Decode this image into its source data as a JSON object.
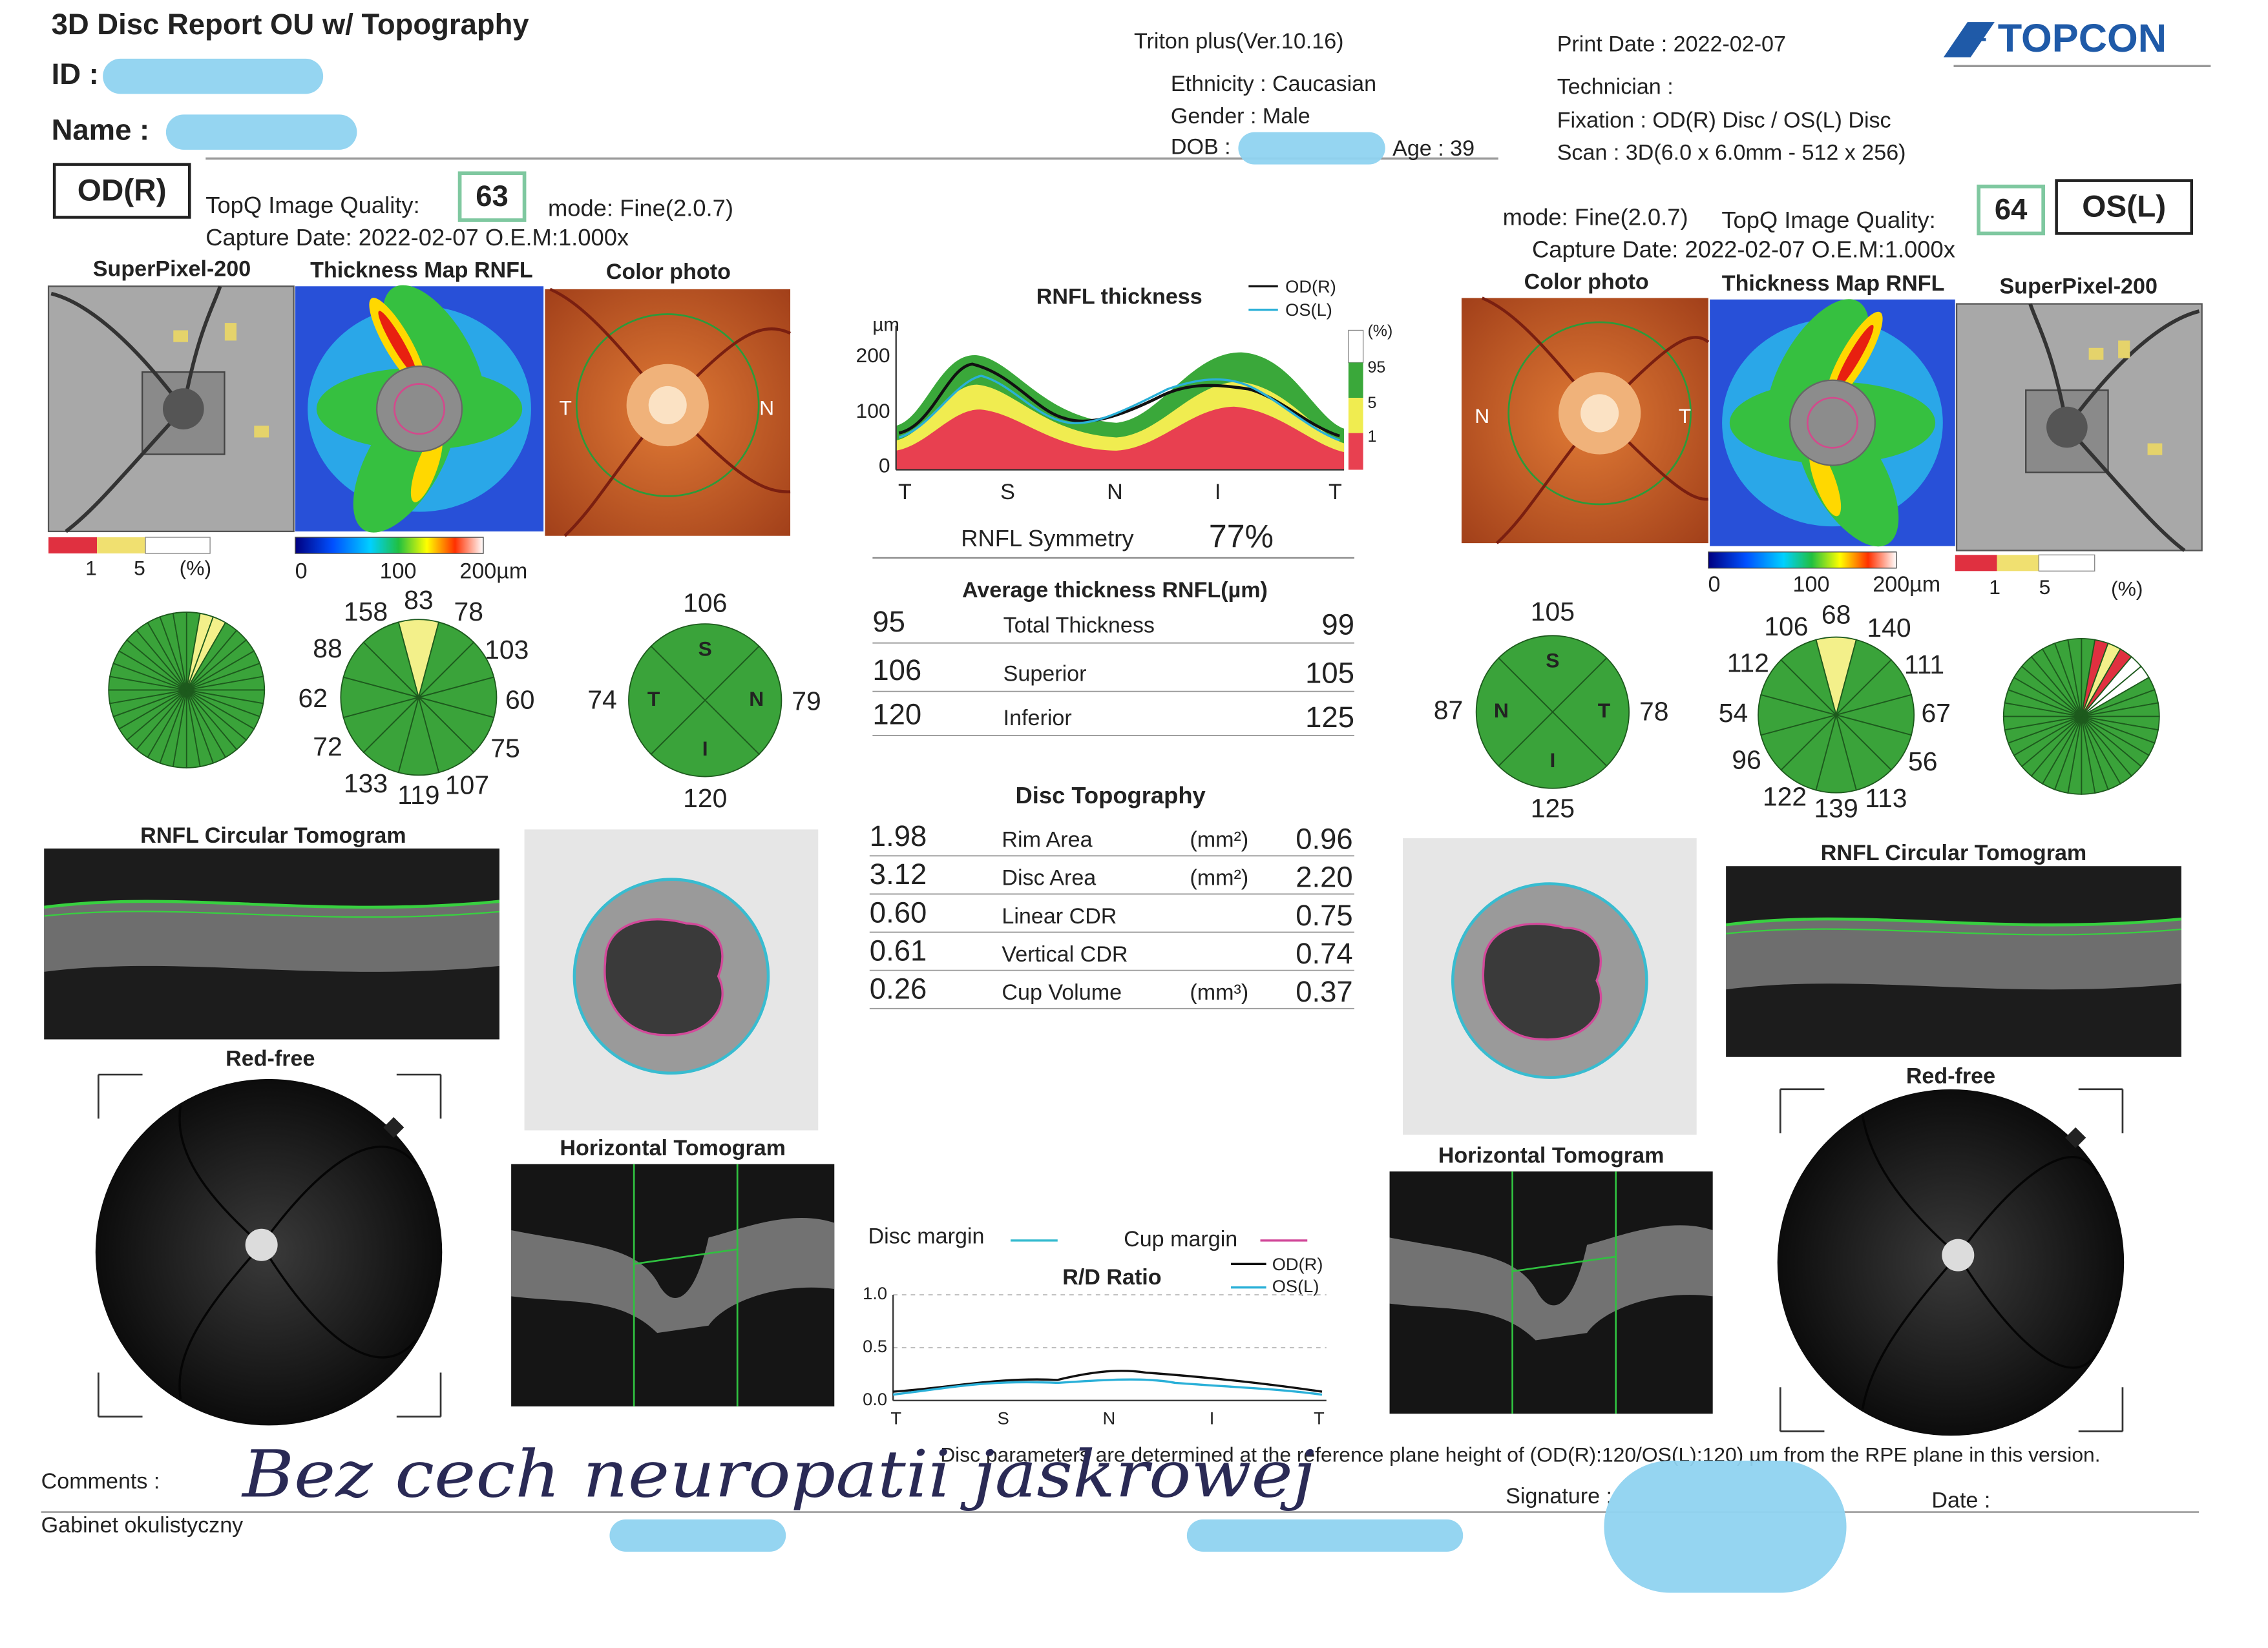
{
  "header": {
    "title": "3D Disc Report OU w/ Topography",
    "id_label": "ID :",
    "name_label": "Name :",
    "device": "Triton plus(Ver.10.16)",
    "ethnicity": "Ethnicity : Caucasian",
    "gender": "Gender : Male",
    "dob_label": "DOB :",
    "age": "Age : 39",
    "print_date": "Print Date : 2022-02-07",
    "technician": "Technician :",
    "fixation": "Fixation : OD(R) Disc / OS(L) Disc",
    "scan": "Scan : 3D(6.0 x 6.0mm - 512 x 256)",
    "logo": "TOPCON"
  },
  "od": {
    "eye": "OD(R)",
    "quality_label": "TopQ Image Quality:",
    "quality": "63",
    "mode": "mode: Fine(2.0.7)",
    "capture": "Capture Date: 2022-02-07  O.E.M:1.000x",
    "image_labels": [
      "SuperPixel-200",
      "Thickness Map RNFL",
      "Color photo"
    ],
    "photo_sides": [
      "T",
      "N"
    ],
    "superpixel_scale": [
      "1",
      "5",
      "(%)"
    ],
    "thickness_scale": [
      "0",
      "100",
      "200µm"
    ],
    "clock": [
      "158",
      "83",
      "78",
      "88",
      "103",
      "62",
      "60",
      "72",
      "75",
      "133",
      "119",
      "107"
    ],
    "quadrants": [
      "106",
      "74",
      "79",
      "120"
    ],
    "quadrant_letters": [
      "S",
      "T",
      "N",
      "I"
    ],
    "circular_label": "RNFL Circular Tomogram",
    "redfree_label": "Red-free",
    "horizontal_label": "Horizontal Tomogram"
  },
  "os": {
    "eye": "OS(L)",
    "quality_label": "TopQ Image Quality:",
    "quality": "64",
    "mode": "mode: Fine(2.0.7)",
    "capture": "Capture Date: 2022-02-07  O.E.M:1.000x",
    "image_labels": [
      "Color photo",
      "Thickness Map RNFL",
      "SuperPixel-200"
    ],
    "photo_sides": [
      "N",
      "T"
    ],
    "superpixel_scale": [
      "1",
      "5",
      "(%)"
    ],
    "thickness_scale": [
      "0",
      "100",
      "200µm"
    ],
    "clock": [
      "106",
      "68",
      "140",
      "112",
      "111",
      "54",
      "67",
      "96",
      "56",
      "122",
      "139",
      "113"
    ],
    "quadrants": [
      "105",
      "87",
      "78",
      "125"
    ],
    "quadrant_letters": [
      "S",
      "N",
      "T",
      "I"
    ],
    "circular_label": "RNFL Circular Tomogram",
    "redfree_label": "Red-free",
    "horizontal_label": "Horizontal Tomogram"
  },
  "rnfl_chart": {
    "title": "RNFL thickness",
    "legend": [
      "OD(R)",
      "OS(L)"
    ],
    "unit": "µm",
    "yticks": [
      "200",
      "100",
      "0"
    ],
    "xlabels": [
      "T",
      "S",
      "N",
      "I",
      "T"
    ],
    "percentile": [
      "(%)",
      "95",
      "5",
      "1"
    ]
  },
  "symmetry": {
    "label": "RNFL Symmetry",
    "value": "77%"
  },
  "average": {
    "title": "Average thickness RNFL(µm)",
    "rows": [
      {
        "od": "95",
        "label": "Total Thickness",
        "os": "99"
      },
      {
        "od": "106",
        "label": "Superior",
        "os": "105"
      },
      {
        "od": "120",
        "label": "Inferior",
        "os": "125"
      }
    ]
  },
  "disc": {
    "title": "Disc Topography",
    "rows": [
      {
        "od": "1.98",
        "label": "Rim Area",
        "unit": "(mm²)",
        "os": "0.96"
      },
      {
        "od": "3.12",
        "label": "Disc Area",
        "unit": "(mm²)",
        "os": "2.20"
      },
      {
        "od": "0.60",
        "label": "Linear CDR",
        "os": "0.75"
      },
      {
        "od": "0.61",
        "label": "Vertical CDR",
        "os": "0.74"
      },
      {
        "od": "0.26",
        "label": "Cup Volume",
        "unit": "(mm³)",
        "os": "0.37"
      }
    ]
  },
  "margins": {
    "disc": "Disc margin",
    "cup": "Cup margin"
  },
  "rd_chart": {
    "title": "R/D Ratio",
    "legend": [
      "OD(R)",
      "OS(L)"
    ],
    "yticks": [
      "1.0",
      "0.5",
      "0.0"
    ],
    "xlabels": [
      "T",
      "S",
      "N",
      "I",
      "T"
    ]
  },
  "note": "Disc parameters are determined at the reference plane height of (OD(R):120/OS(L):120) µm from the RPE plane in this version.",
  "footer": {
    "comments": "Comments :",
    "handwriting": "Bez cech neuropatii jaskrowej",
    "clinic": "Gabinet okulistyczny",
    "signature": "Signature :",
    "date": "Date :"
  }
}
